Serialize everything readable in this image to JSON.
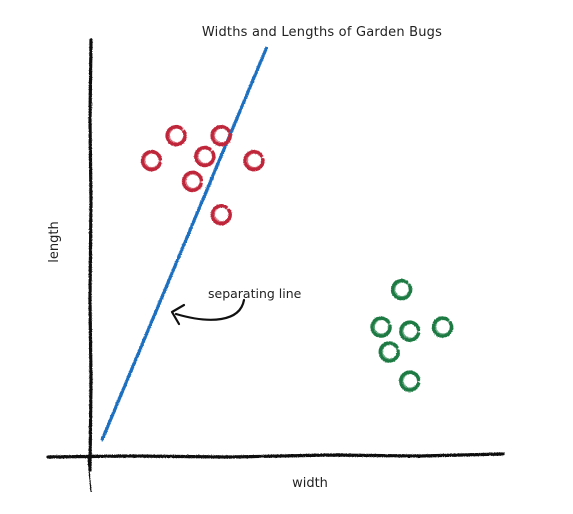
{
  "chart_data": {
    "type": "scatter",
    "title": "Widths and Lengths of Garden Bugs",
    "xlabel": "width",
    "ylabel": "length",
    "xlim": [
      0,
      10
    ],
    "ylim": [
      0,
      10
    ],
    "grid": false,
    "series": [
      {
        "color": "#c0283a",
        "points": [
          {
            "x": 2.1,
            "y": 7.7
          },
          {
            "x": 3.2,
            "y": 7.7
          },
          {
            "x": 1.5,
            "y": 7.1
          },
          {
            "x": 2.8,
            "y": 7.2
          },
          {
            "x": 4.0,
            "y": 7.1
          },
          {
            "x": 2.5,
            "y": 6.6
          },
          {
            "x": 3.2,
            "y": 5.8
          }
        ]
      },
      {
        "color": "#1c7a43",
        "points": [
          {
            "x": 7.6,
            "y": 4.0
          },
          {
            "x": 7.1,
            "y": 3.1
          },
          {
            "x": 7.8,
            "y": 3.0
          },
          {
            "x": 8.6,
            "y": 3.1
          },
          {
            "x": 7.3,
            "y": 2.5
          },
          {
            "x": 7.8,
            "y": 1.8
          }
        ]
      }
    ],
    "lines": [
      {
        "color": "#1f6fbf",
        "x": [
          0.3,
          4.3
        ],
        "y": [
          0.4,
          9.8
        ]
      }
    ],
    "annotations": [
      {
        "text": "separating line",
        "x": 2.2,
        "y": 3.6
      }
    ],
    "colors": {
      "axis": "#111111",
      "text": "#222222"
    }
  }
}
